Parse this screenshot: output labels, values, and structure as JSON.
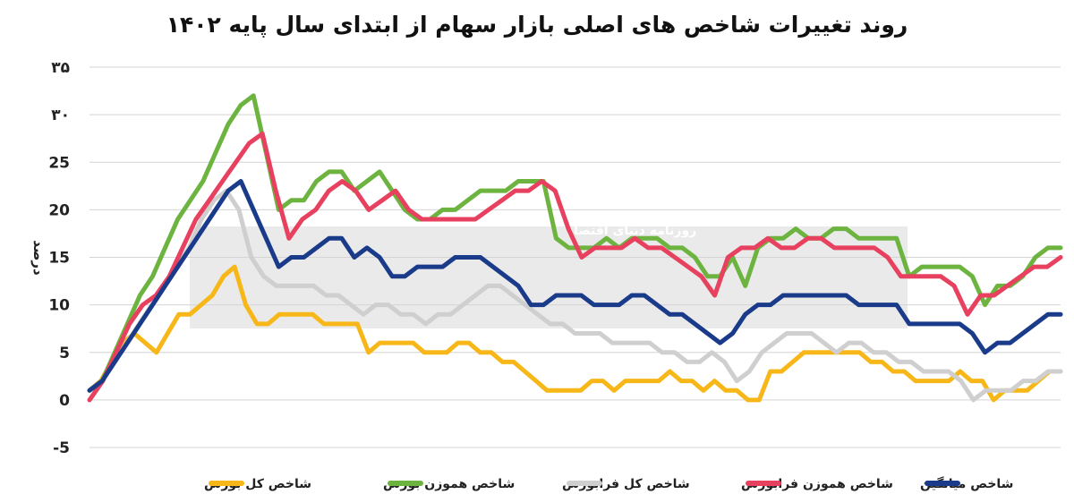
{
  "chart_data": {
    "type": "line",
    "title": "روند تغییرات شاخص های اصلی بازار سهام از ابتدای سال پایه ۱۴۰۲",
    "ylabel": "درصد",
    "xlabel": "",
    "ylim": [
      -5,
      35
    ],
    "yticks": [
      {
        "value": 35,
        "label": "۳۵"
      },
      {
        "value": 30,
        "label": "۳۰"
      },
      {
        "value": 25,
        "label": "25"
      },
      {
        "value": 20,
        "label": "20"
      },
      {
        "value": 15,
        "label": "15"
      },
      {
        "value": 10,
        "label": "10"
      },
      {
        "value": 5,
        "label": "5"
      },
      {
        "value": 0,
        "label": "0"
      },
      {
        "value": -5,
        "label": "-5"
      }
    ],
    "grid": true,
    "legend_position": "bottom",
    "watermark": "روزنامه دنیای اقتصاد",
    "series": [
      {
        "name": "شاخص کل بورس",
        "color": "#f7b718",
        "values": [
          1,
          2,
          4,
          6,
          7,
          6,
          5,
          7,
          9,
          9,
          10,
          11,
          13,
          14,
          10,
          8,
          8,
          9,
          9,
          9,
          9,
          8,
          8,
          8,
          8,
          5,
          6,
          6,
          6,
          6,
          5,
          5,
          5,
          6,
          6,
          5,
          5,
          4,
          4,
          3,
          2,
          1,
          1,
          1,
          1,
          2,
          2,
          1,
          2,
          2,
          2,
          2,
          3,
          2,
          2,
          1,
          2,
          1,
          1,
          0,
          0,
          3,
          3,
          4,
          5,
          5,
          5,
          5,
          5,
          5,
          4,
          4,
          3,
          3,
          2,
          2,
          2,
          2,
          3,
          2,
          2,
          0,
          1,
          1,
          1,
          2,
          3,
          3
        ]
      },
      {
        "name": "شاخص هموزن بورس",
        "color": "#6cb43f",
        "values": [
          1,
          2,
          5,
          8,
          11,
          13,
          16,
          19,
          21,
          23,
          26,
          29,
          31,
          32,
          26,
          20,
          21,
          21,
          23,
          24,
          24,
          22,
          23,
          24,
          22,
          20,
          19,
          19,
          20,
          20,
          21,
          22,
          22,
          22,
          23,
          23,
          23,
          17,
          16,
          16,
          16,
          17,
          16,
          17,
          17,
          17,
          16,
          16,
          15,
          13,
          13,
          15,
          12,
          16,
          17,
          17,
          18,
          17,
          17,
          18,
          18,
          17,
          17,
          17,
          17,
          13,
          14,
          14,
          14,
          14,
          13,
          10,
          12,
          12,
          13,
          15,
          16,
          16
        ]
      },
      {
        "name": "شاخص کل فرابورس",
        "color": "#cfcfcf",
        "values": [
          1,
          2,
          4,
          6,
          8,
          10,
          12,
          14,
          16,
          19,
          21,
          22,
          20,
          15,
          13,
          12,
          12,
          12,
          12,
          11,
          11,
          10,
          9,
          10,
          10,
          9,
          9,
          8,
          9,
          9,
          10,
          11,
          12,
          12,
          11,
          10,
          9,
          8,
          8,
          7,
          7,
          7,
          6,
          6,
          6,
          6,
          5,
          5,
          4,
          4,
          5,
          4,
          2,
          3,
          5,
          6,
          7,
          7,
          7,
          6,
          5,
          6,
          6,
          5,
          5,
          4,
          4,
          3,
          3,
          3,
          2,
          0,
          1,
          1,
          1,
          2,
          2,
          3,
          3
        ]
      },
      {
        "name": "شاخص هموزن فرابورس",
        "color": "#e8405f",
        "values": [
          0,
          2,
          5,
          8,
          10,
          11,
          13,
          16,
          19,
          21,
          23,
          25,
          27,
          28,
          22,
          17,
          19,
          20,
          22,
          23,
          22,
          20,
          21,
          22,
          20,
          19,
          19,
          19,
          19,
          19,
          20,
          21,
          22,
          22,
          23,
          22,
          18,
          15,
          16,
          16,
          16,
          17,
          16,
          16,
          15,
          14,
          13,
          11,
          15,
          16,
          16,
          17,
          16,
          16,
          17,
          17,
          16,
          16,
          16,
          16,
          15,
          13,
          13,
          13,
          13,
          12,
          9,
          11,
          11,
          12,
          13,
          14,
          14,
          15
        ]
      },
      {
        "name": "شاخص میانگین",
        "color": "#1a3a8a",
        "values": [
          1,
          2,
          4,
          6,
          8,
          10,
          12,
          14,
          16,
          18,
          20,
          22,
          23,
          20,
          17,
          14,
          15,
          15,
          16,
          17,
          17,
          15,
          16,
          15,
          13,
          13,
          14,
          14,
          14,
          15,
          15,
          15,
          14,
          13,
          12,
          10,
          10,
          11,
          11,
          11,
          10,
          10,
          10,
          11,
          11,
          10,
          9,
          9,
          8,
          7,
          6,
          7,
          9,
          10,
          10,
          11,
          11,
          11,
          11,
          11,
          11,
          10,
          10,
          10,
          10,
          8,
          8,
          8,
          8,
          8,
          7,
          5,
          6,
          6,
          7,
          8,
          9,
          9
        ]
      }
    ]
  }
}
